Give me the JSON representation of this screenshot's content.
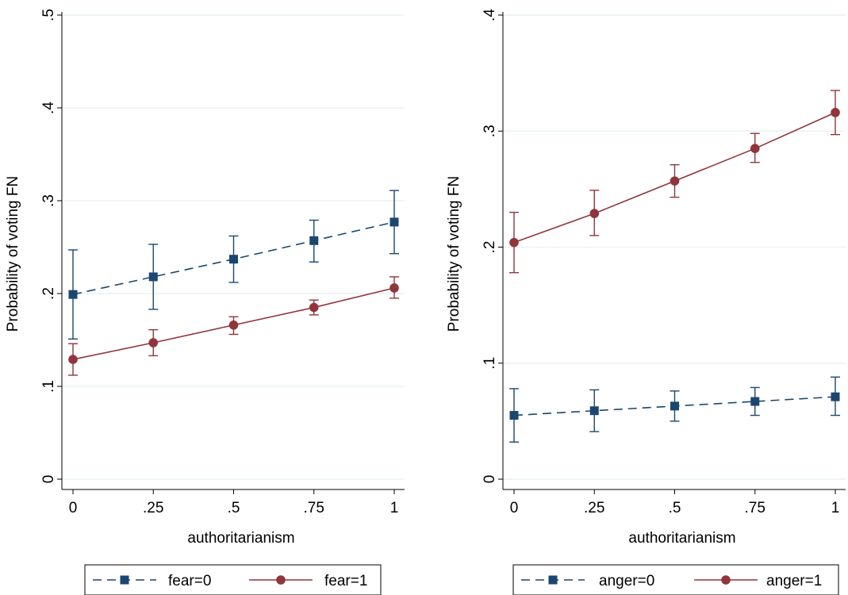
{
  "colors": {
    "series_0": "#1a476f",
    "series_1": "#90353b",
    "grid": "#eaf2f3",
    "axis": "#000000"
  },
  "chart_data": [
    {
      "type": "line",
      "xlabel": "authoritarianism",
      "ylabel": "Probability of voting FN",
      "x": [
        0,
        0.25,
        0.5,
        0.75,
        1
      ],
      "xtick_labels": [
        "0",
        ".25",
        ".5",
        ".75",
        "1"
      ],
      "y_ticks": [
        0,
        0.1,
        0.2,
        0.3,
        0.4,
        0.5
      ],
      "ytick_labels": [
        "0",
        ".1",
        ".2",
        ".3",
        ".4",
        ".5"
      ],
      "ylim": [
        0,
        0.5
      ],
      "grid": true,
      "legend_position": "bottom",
      "series": [
        {
          "name": "fear=0",
          "marker": "square",
          "line_style": "dashed",
          "values": [
            0.199,
            0.218,
            0.237,
            0.257,
            0.277
          ],
          "ci_low": [
            0.151,
            0.183,
            0.212,
            0.234,
            0.243
          ],
          "ci_high": [
            0.247,
            0.253,
            0.262,
            0.279,
            0.311
          ]
        },
        {
          "name": "fear=1",
          "marker": "circle",
          "line_style": "solid",
          "values": [
            0.129,
            0.147,
            0.166,
            0.185,
            0.206
          ],
          "ci_low": [
            0.112,
            0.133,
            0.156,
            0.177,
            0.195
          ],
          "ci_high": [
            0.146,
            0.161,
            0.175,
            0.193,
            0.218
          ]
        }
      ]
    },
    {
      "type": "line",
      "xlabel": "authoritarianism",
      "ylabel": "Probability of voting FN",
      "x": [
        0,
        0.25,
        0.5,
        0.75,
        1
      ],
      "xtick_labels": [
        "0",
        ".25",
        ".5",
        ".75",
        "1"
      ],
      "y_ticks": [
        0,
        0.1,
        0.2,
        0.3,
        0.4
      ],
      "ytick_labels": [
        "0",
        ".1",
        ".2",
        ".3",
        ".4"
      ],
      "ylim": [
        0,
        0.4
      ],
      "grid": true,
      "legend_position": "bottom",
      "series": [
        {
          "name": "anger=0",
          "marker": "square",
          "line_style": "dashed",
          "values": [
            0.055,
            0.059,
            0.063,
            0.067,
            0.071
          ],
          "ci_low": [
            0.032,
            0.041,
            0.05,
            0.055,
            0.055
          ],
          "ci_high": [
            0.078,
            0.077,
            0.076,
            0.079,
            0.088
          ]
        },
        {
          "name": "anger=1",
          "marker": "circle",
          "line_style": "solid",
          "values": [
            0.204,
            0.229,
            0.257,
            0.285,
            0.316
          ],
          "ci_low": [
            0.178,
            0.21,
            0.243,
            0.273,
            0.297
          ],
          "ci_high": [
            0.23,
            0.249,
            0.271,
            0.298,
            0.335
          ]
        }
      ]
    }
  ]
}
